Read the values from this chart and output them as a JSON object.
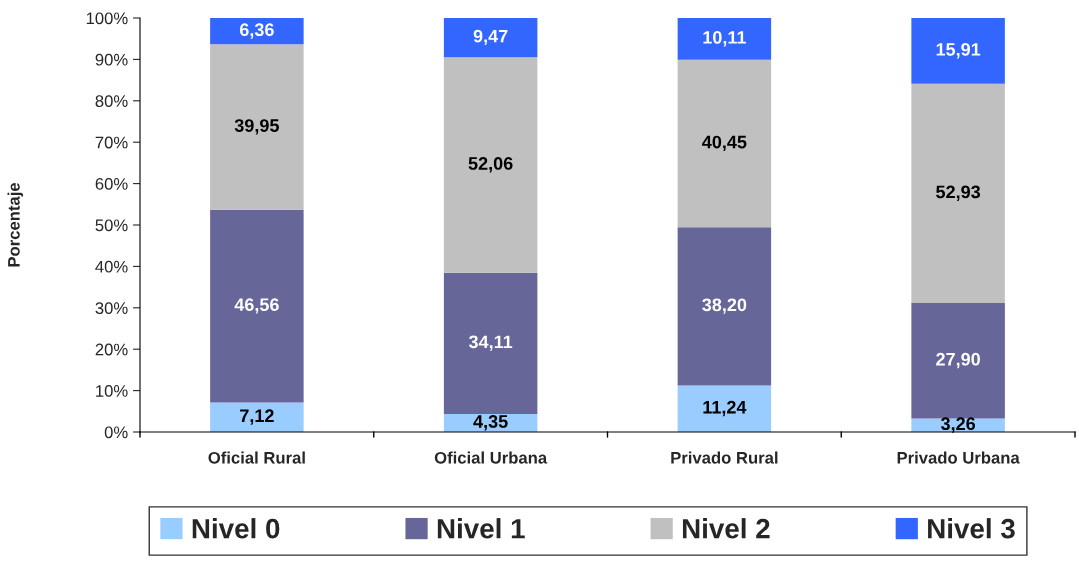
{
  "chart_data": {
    "type": "bar",
    "stacked": true,
    "ylabel": "Porcentaje",
    "categories": [
      "Oficial Rural",
      "Oficial Urbana",
      "Privado Rural",
      "Privado Urbana"
    ],
    "series": [
      {
        "name": "Nivel 0",
        "color": "#99ccff",
        "values": [
          7.12,
          4.35,
          11.24,
          3.26
        ],
        "value_labels": [
          "7,12",
          "4,35",
          "11,24",
          "3,26"
        ]
      },
      {
        "name": "Nivel 1",
        "color": "#666699",
        "values": [
          46.56,
          34.11,
          38.2,
          27.9
        ],
        "value_labels": [
          "46,56",
          "34,11",
          "38,20",
          "27,90"
        ]
      },
      {
        "name": "Nivel 2",
        "color": "#c0c0c0",
        "values": [
          39.95,
          52.06,
          40.45,
          52.93
        ],
        "value_labels": [
          "39,95",
          "52,06",
          "40,45",
          "52,93"
        ]
      },
      {
        "name": "Nivel 3",
        "color": "#3366ff",
        "values": [
          6.36,
          9.47,
          10.11,
          15.91
        ],
        "value_labels": [
          "6,36",
          "9,47",
          "10,11",
          "15,91"
        ]
      }
    ],
    "ylim": [
      0,
      100
    ],
    "yticks": [
      {
        "value": 0,
        "label": "0%"
      },
      {
        "value": 10,
        "label": "10%"
      },
      {
        "value": 20,
        "label": "20%"
      },
      {
        "value": 30,
        "label": "30%"
      },
      {
        "value": 40,
        "label": "40%"
      },
      {
        "value": 50,
        "label": "50%"
      },
      {
        "value": 60,
        "label": "60%"
      },
      {
        "value": 70,
        "label": "70%"
      },
      {
        "value": 80,
        "label": "80%"
      },
      {
        "value": 90,
        "label": "90%"
      },
      {
        "value": 100,
        "label": "100%"
      }
    ],
    "grid": false,
    "legend": "bottom"
  }
}
